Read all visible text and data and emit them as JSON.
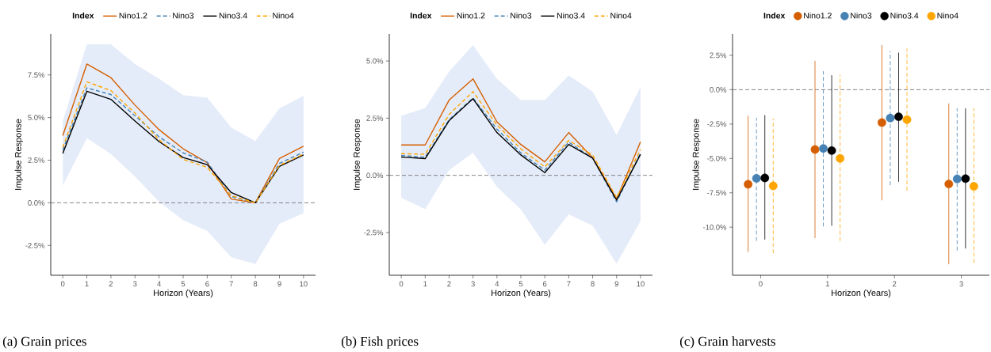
{
  "chart_data": [
    {
      "type": "line",
      "xlabel": "Horizon (Years)",
      "ylabel": "Impulse Response",
      "legend_title": "Index",
      "legend": "top",
      "annotations": [
        "(a) Grain prices"
      ],
      "x": [
        0,
        1,
        2,
        3,
        4,
        5,
        6,
        7,
        8,
        9,
        10
      ],
      "xlim": [
        -0.5,
        10.5
      ],
      "xticks": [
        0,
        1,
        2,
        3,
        4,
        5,
        6,
        7,
        8,
        9,
        10
      ],
      "ylim": [
        -4.25,
        9.9
      ],
      "yticks": [
        {
          "value": -2.5,
          "label": "-2.5%"
        },
        {
          "value": 0,
          "label": "0.0%"
        },
        {
          "value": 2.5,
          "label": "2.5%"
        },
        {
          "value": 5,
          "label": "5.0%"
        },
        {
          "value": 7.5,
          "label": "7.5%"
        }
      ],
      "ref_lines": [
        {
          "axis": "y",
          "value": 0,
          "color": "#666666",
          "line_style": "dashed"
        }
      ],
      "series": [
        {
          "name": "Nino1.2",
          "color": "#d55e00",
          "line_style": "solid",
          "values": [
            3.94,
            8.14,
            7.34,
            5.73,
            4.29,
            3.17,
            2.36,
            0.22,
            0,
            2.6,
            3.32
          ]
        },
        {
          "name": "Nino3",
          "color": "#4682b4",
          "line_style": "dashed",
          "values": [
            3.1,
            6.74,
            6.35,
            5.1,
            3.87,
            2.93,
            2.39,
            0.37,
            0,
            2.31,
            2.97
          ]
        },
        {
          "name": "Nino3.4",
          "color": "#000000",
          "line_style": "solid",
          "values": [
            2.9,
            6.54,
            6.07,
            4.8,
            3.59,
            2.66,
            2.24,
            0.6,
            0,
            2.13,
            2.81
          ],
          "lower": [
            1.0,
            3.79,
            2.86,
            1.54,
            0.06,
            -1.02,
            -1.65,
            -3.2,
            -3.59,
            -1.23,
            -0.61
          ],
          "upper": [
            4.8,
            9.3,
            9.3,
            8.14,
            7.28,
            6.32,
            6.16,
            4.41,
            3.63,
            5.54,
            6.27
          ]
        },
        {
          "name": "Nino4",
          "color": "#ffa500",
          "line_style": "dashed",
          "values": [
            3.25,
            7.1,
            6.58,
            5.26,
            3.7,
            2.55,
            2.08,
            0.42,
            0,
            2.19,
            2.86
          ]
        }
      ]
    },
    {
      "type": "line",
      "xlabel": "Horizon (Years)",
      "ylabel": "Impulse Response",
      "legend_title": "Index",
      "legend": "top",
      "annotations": [
        "(b) Fish prices"
      ],
      "x": [
        0,
        1,
        2,
        3,
        4,
        5,
        6,
        7,
        8,
        9,
        10
      ],
      "xlim": [
        -0.5,
        10.5
      ],
      "xticks": [
        0,
        1,
        2,
        3,
        4,
        5,
        6,
        7,
        8,
        9,
        10
      ],
      "ylim": [
        -4.37,
        6.18
      ],
      "yticks": [
        {
          "value": -2.5,
          "label": "-2.5%"
        },
        {
          "value": 0,
          "label": "0.0%"
        },
        {
          "value": 2.5,
          "label": "2.5%"
        },
        {
          "value": 5,
          "label": "5.0%"
        }
      ],
      "ref_lines": [
        {
          "axis": "y",
          "value": 0,
          "color": "#666666",
          "line_style": "dashed"
        }
      ],
      "series": [
        {
          "name": "Nino1.2",
          "color": "#d55e00",
          "line_style": "solid",
          "values": [
            1.33,
            1.33,
            3.29,
            4.22,
            2.34,
            1.35,
            0.59,
            1.87,
            0.77,
            -1.04,
            1.47
          ]
        },
        {
          "name": "Nino3",
          "color": "#4682b4",
          "line_style": "dashed",
          "values": [
            0.87,
            0.79,
            2.43,
            3.38,
            2.02,
            0.98,
            0.23,
            1.45,
            0.75,
            -1.16,
            0.98
          ]
        },
        {
          "name": "Nino3.4",
          "color": "#000000",
          "line_style": "solid",
          "values": [
            0.8,
            0.73,
            2.39,
            3.35,
            1.87,
            0.89,
            0.12,
            1.35,
            0.75,
            -1.08,
            0.92
          ],
          "lower": [
            -0.98,
            -1.48,
            0.23,
            0.98,
            -0.5,
            -1.5,
            -3.04,
            -1.71,
            -2.2,
            -3.87,
            -2.0
          ],
          "upper": [
            2.6,
            2.95,
            4.54,
            5.7,
            4.22,
            3.29,
            3.29,
            4.37,
            3.66,
            1.77,
            3.87
          ]
        },
        {
          "name": "Nino4",
          "color": "#ffa500",
          "line_style": "dashed",
          "values": [
            0.95,
            0.92,
            2.66,
            3.66,
            2.2,
            1.16,
            0.37,
            1.53,
            0.89,
            -0.98,
            1.13
          ]
        }
      ]
    },
    {
      "type": "scatter",
      "xlabel": "Horizon (Years)",
      "ylabel": "Impulse Response",
      "legend_title": "Index",
      "legend": "top",
      "marker": "circle",
      "annotations": [
        "(c) Grain harvests"
      ],
      "categories": [
        "0",
        "1",
        "2",
        "3"
      ],
      "ylim": [
        -13.5,
        4.05
      ],
      "yticks": [
        {
          "value": -10,
          "label": "-10.0%"
        },
        {
          "value": -7.5,
          "label": "-7.5%"
        },
        {
          "value": -5,
          "label": "-5.0%"
        },
        {
          "value": -2.5,
          "label": "-2.5%"
        },
        {
          "value": 0,
          "label": "0.0%"
        },
        {
          "value": 2.5,
          "label": "2.5%"
        }
      ],
      "ref_lines": [
        {
          "axis": "y",
          "value": 0,
          "color": "#666666",
          "line_style": "dashed"
        }
      ],
      "series": [
        {
          "name": "Nino1.2",
          "color": "#d55e00",
          "line_style": "solid",
          "values": [
            -6.88,
            -4.35,
            -2.39,
            -6.86
          ],
          "errors": [
            [
              -11.8,
              -1.9
            ],
            [
              -10.8,
              2.1
            ],
            [
              -8.05,
              3.25
            ],
            [
              -12.7,
              -1.0
            ]
          ]
        },
        {
          "name": "Nino3",
          "color": "#4682b4",
          "line_style": "dashed",
          "values": [
            -6.45,
            -4.28,
            -2.06,
            -6.49
          ],
          "errors": [
            [
              -11.0,
              -2.05
            ],
            [
              -9.95,
              1.35
            ],
            [
              -6.95,
              2.8
            ],
            [
              -11.7,
              -1.35
            ]
          ]
        },
        {
          "name": "Nino3.4",
          "color": "#000000",
          "line_style": "solid",
          "values": [
            -6.42,
            -4.43,
            -1.97,
            -6.47
          ],
          "errors": [
            [
              -10.9,
              -1.85
            ],
            [
              -9.9,
              1.05
            ],
            [
              -6.7,
              2.7
            ],
            [
              -11.55,
              -1.35
            ]
          ]
        },
        {
          "name": "Nino4",
          "color": "#ffa500",
          "line_style": "dashed",
          "values": [
            -7.0,
            -5.0,
            -2.18,
            -7.03
          ],
          "errors": [
            [
              -11.9,
              -2.1
            ],
            [
              -11.0,
              1.1
            ],
            [
              -7.35,
              3.0
            ],
            [
              -12.6,
              -1.35
            ]
          ]
        }
      ]
    }
  ]
}
